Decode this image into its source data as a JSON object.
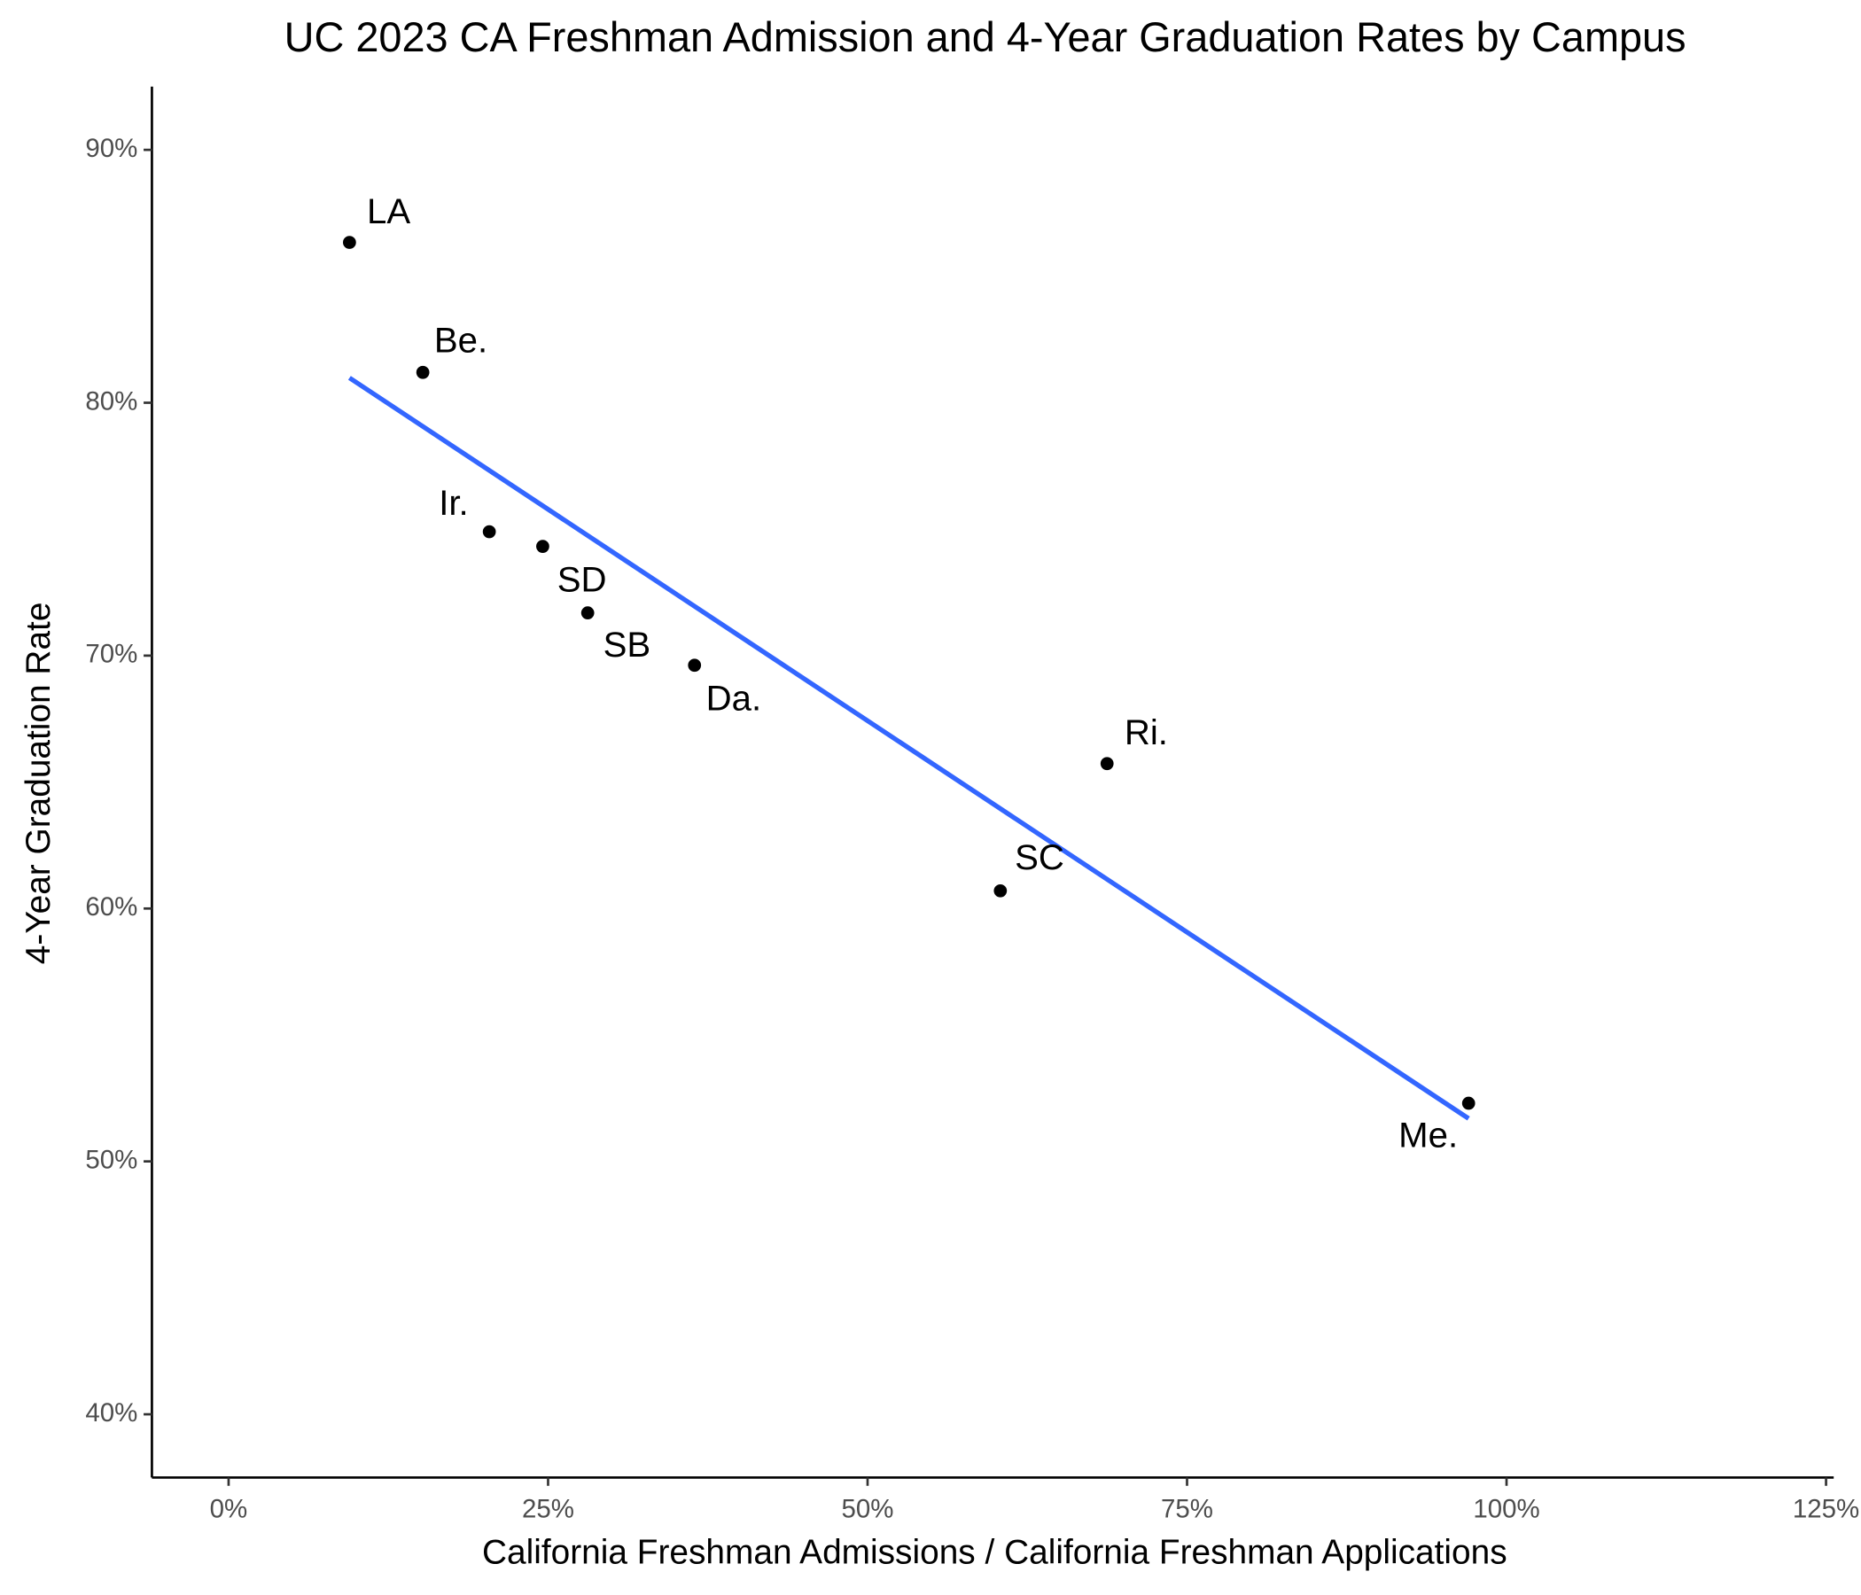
{
  "chart_data": {
    "type": "scatter",
    "title": "UC 2023 CA Freshman Admission and 4-Year Graduation Rates by Campus",
    "x_label": "California Freshman Admissions / California Freshman Applications",
    "y_label": "4-Year Graduation Rate",
    "series": [
      {
        "color": "#000000",
        "labels": [
          "LA",
          "Be.",
          "Ir.",
          "SD",
          "SB",
          "Da.",
          "SC",
          "Ri.",
          "Me."
        ],
        "x": [
          9.46,
          15.2,
          20.4,
          24.58,
          28.1,
          36.46,
          60.39,
          68.74,
          97.03
        ],
        "values": [
          86.34,
          81.2,
          74.9,
          74.32,
          71.69,
          69.62,
          60.7,
          65.73,
          52.3
        ]
      }
    ],
    "trend_line": {
      "method": "lm",
      "color": "#3366ff"
    },
    "xlim": [
      -6,
      125.6
    ],
    "ylim": [
      37.5,
      92.5
    ],
    "xticks": [
      {
        "value": 0,
        "label": "0%"
      },
      {
        "value": 25,
        "label": "25%"
      },
      {
        "value": 50,
        "label": "50%"
      },
      {
        "value": 75,
        "label": "75%"
      },
      {
        "value": 100,
        "label": "100%"
      },
      {
        "value": 125,
        "label": "125%"
      }
    ],
    "yticks": [
      {
        "value": 40,
        "label": "40%"
      },
      {
        "value": 50,
        "label": "50%"
      },
      {
        "value": 60,
        "label": "60%"
      },
      {
        "value": 70,
        "label": "70%"
      },
      {
        "value": 80,
        "label": "80%"
      },
      {
        "value": 90,
        "label": "90%"
      }
    ],
    "grid": false
  }
}
